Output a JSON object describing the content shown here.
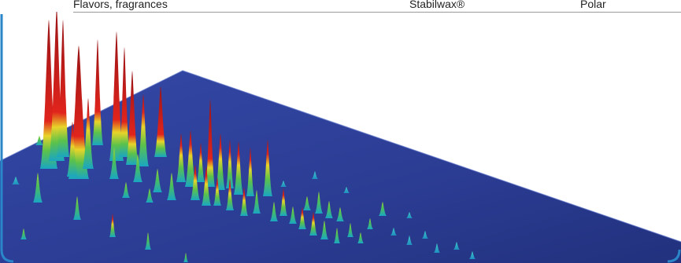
{
  "table_row": {
    "application": "Flavors, fragrances",
    "stationary_phase": "Stabilwax®",
    "polarity": "Polar"
  },
  "colors": {
    "plane": "#2b3f9a",
    "plane_edge": "#5a70c4",
    "peak_low": "#1bb5c8",
    "peak_mid": "#6cc63c",
    "peak_high": "#f0d020",
    "peak_top": "#b3181b",
    "frame": "#2a86c8"
  }
}
